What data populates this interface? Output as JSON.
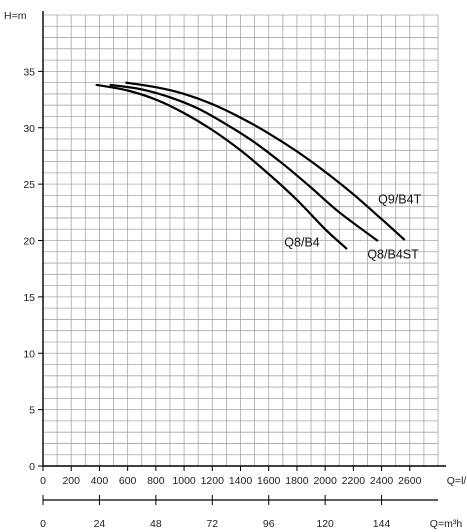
{
  "chart_data": {
    "type": "line",
    "title": "",
    "ylabel": "H=m",
    "xlabel": "Q=l/min",
    "x2label": "Q=m³h",
    "xlim": [
      0,
      2800
    ],
    "ylim": [
      0,
      40
    ],
    "grid": true,
    "y_ticks": [
      "0",
      "5",
      "10",
      "15",
      "20",
      "25",
      "30",
      "35"
    ],
    "x_ticks": [
      "0",
      "200",
      "400",
      "600",
      "800",
      "1000",
      "1200",
      "1400",
      "1600",
      "1800",
      "2000",
      "2200",
      "2400",
      "2600"
    ],
    "x2_ticks": [
      "0",
      "24",
      "48",
      "72",
      "96",
      "120",
      "144"
    ],
    "series": [
      {
        "name": "Q8/B4",
        "x": [
          380,
          600,
          800,
          1000,
          1200,
          1400,
          1600,
          1800,
          2000,
          2150
        ],
        "y": [
          33.8,
          33.3,
          32.5,
          31.3,
          29.8,
          28.0,
          25.9,
          23.6,
          21.0,
          19.3
        ]
      },
      {
        "name": "Q8/B4ST",
        "x": [
          480,
          700,
          900,
          1100,
          1300,
          1500,
          1700,
          1900,
          2100,
          2370
        ],
        "y": [
          33.8,
          33.4,
          32.7,
          31.7,
          30.3,
          28.7,
          26.8,
          24.7,
          22.5,
          20.0
        ]
      },
      {
        "name": "Q9/B4T",
        "x": [
          590,
          800,
          1000,
          1200,
          1400,
          1600,
          1800,
          2000,
          2200,
          2400,
          2560
        ],
        "y": [
          34.0,
          33.6,
          33.0,
          32.1,
          30.9,
          29.5,
          27.9,
          26.1,
          24.1,
          21.9,
          20.1
        ]
      }
    ]
  }
}
